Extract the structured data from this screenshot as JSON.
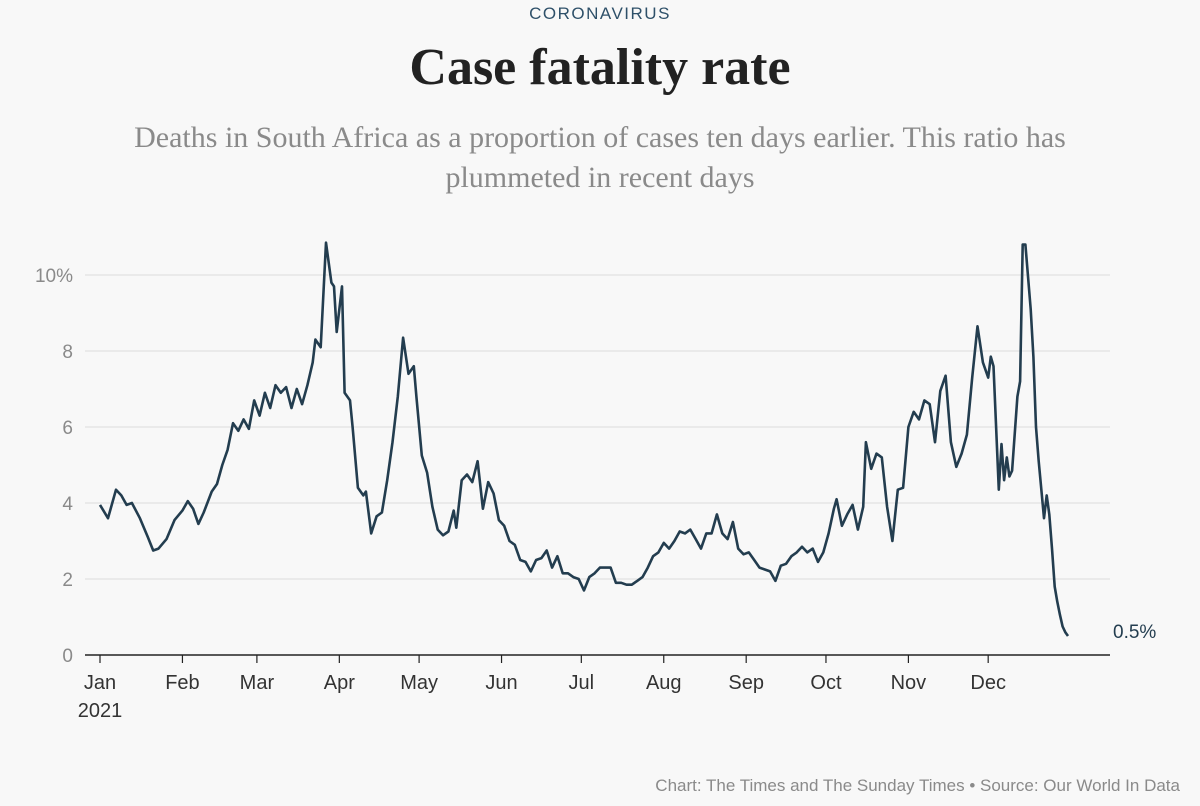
{
  "header": {
    "kicker": "CORONAVIRUS",
    "title": "Case fatality rate",
    "subtitle": "Deaths in South Africa as a proportion of cases ten days earlier. This ratio has plummeted in recent days"
  },
  "footer": {
    "credit": "Chart: The Times and The Sunday Times • Source: Our World In Data"
  },
  "colors": {
    "line": "#233d4f",
    "grid": "#dddddd",
    "axis": "#222222",
    "kicker": "#2e5069"
  },
  "chart_data": {
    "type": "line",
    "title": "Case fatality rate",
    "xlabel": "",
    "ylabel": "",
    "x_unit": "day of year 2021",
    "xlim": [
      0,
      365
    ],
    "ylim": [
      0,
      10.8
    ],
    "grid": true,
    "y_ticks": [
      {
        "value": 0,
        "label": "0"
      },
      {
        "value": 2,
        "label": "2"
      },
      {
        "value": 4,
        "label": "4"
      },
      {
        "value": 6,
        "label": "6"
      },
      {
        "value": 8,
        "label": "8"
      },
      {
        "value": 10,
        "label": "10%"
      }
    ],
    "x_ticks": [
      {
        "value": 0,
        "label": "Jan",
        "sublabel": "2021"
      },
      {
        "value": 31,
        "label": "Feb"
      },
      {
        "value": 59,
        "label": "Mar"
      },
      {
        "value": 90,
        "label": "Apr"
      },
      {
        "value": 120,
        "label": "May"
      },
      {
        "value": 151,
        "label": "Jun"
      },
      {
        "value": 181,
        "label": "Jul"
      },
      {
        "value": 212,
        "label": "Aug"
      },
      {
        "value": 243,
        "label": "Sep"
      },
      {
        "value": 273,
        "label": "Oct"
      },
      {
        "value": 304,
        "label": "Nov"
      },
      {
        "value": 334,
        "label": "Dec"
      }
    ],
    "end_label": "0.5%",
    "series": [
      {
        "name": "",
        "points": [
          [
            0,
            3.95
          ],
          [
            3,
            3.6
          ],
          [
            6,
            4.35
          ],
          [
            8,
            4.2
          ],
          [
            10,
            3.95
          ],
          [
            12,
            4.0
          ],
          [
            15,
            3.6
          ],
          [
            18,
            3.1
          ],
          [
            20,
            2.75
          ],
          [
            22,
            2.8
          ],
          [
            25,
            3.05
          ],
          [
            28,
            3.55
          ],
          [
            31,
            3.8
          ],
          [
            33,
            4.05
          ],
          [
            35,
            3.85
          ],
          [
            37,
            3.45
          ],
          [
            39,
            3.75
          ],
          [
            42,
            4.3
          ],
          [
            44,
            4.5
          ],
          [
            46,
            5.0
          ],
          [
            48,
            5.4
          ],
          [
            50,
            6.1
          ],
          [
            52,
            5.9
          ],
          [
            54,
            6.2
          ],
          [
            56,
            5.95
          ],
          [
            58,
            6.7
          ],
          [
            60,
            6.3
          ],
          [
            62,
            6.9
          ],
          [
            64,
            6.5
          ],
          [
            66,
            7.1
          ],
          [
            68,
            6.9
          ],
          [
            70,
            7.05
          ],
          [
            72,
            6.5
          ],
          [
            74,
            7.0
          ],
          [
            76,
            6.6
          ],
          [
            78,
            7.1
          ],
          [
            80,
            7.7
          ],
          [
            81,
            8.3
          ],
          [
            83,
            8.1
          ],
          [
            85,
            10.85
          ],
          [
            87,
            9.8
          ],
          [
            88,
            9.7
          ],
          [
            89,
            8.5
          ],
          [
            91,
            9.7
          ],
          [
            92,
            6.9
          ],
          [
            94,
            6.7
          ],
          [
            95,
            6.0
          ],
          [
            97,
            4.4
          ],
          [
            99,
            4.2
          ],
          [
            100,
            4.3
          ],
          [
            102,
            3.2
          ],
          [
            104,
            3.65
          ],
          [
            106,
            3.75
          ],
          [
            108,
            4.6
          ],
          [
            110,
            5.6
          ],
          [
            112,
            6.8
          ],
          [
            114,
            8.35
          ],
          [
            116,
            7.4
          ],
          [
            118,
            7.6
          ],
          [
            119,
            6.8
          ],
          [
            121,
            5.25
          ],
          [
            123,
            4.8
          ],
          [
            125,
            3.9
          ],
          [
            127,
            3.3
          ],
          [
            129,
            3.15
          ],
          [
            131,
            3.25
          ],
          [
            133,
            3.8
          ],
          [
            134,
            3.35
          ],
          [
            136,
            4.6
          ],
          [
            138,
            4.75
          ],
          [
            140,
            4.55
          ],
          [
            142,
            5.1
          ],
          [
            144,
            3.85
          ],
          [
            146,
            4.55
          ],
          [
            148,
            4.25
          ],
          [
            150,
            3.55
          ],
          [
            152,
            3.4
          ],
          [
            154,
            3.0
          ],
          [
            156,
            2.9
          ],
          [
            158,
            2.5
          ],
          [
            160,
            2.45
          ],
          [
            162,
            2.2
          ],
          [
            164,
            2.5
          ],
          [
            166,
            2.55
          ],
          [
            168,
            2.75
          ],
          [
            170,
            2.3
          ],
          [
            172,
            2.6
          ],
          [
            174,
            2.15
          ],
          [
            176,
            2.15
          ],
          [
            178,
            2.05
          ],
          [
            180,
            2.0
          ],
          [
            182,
            1.7
          ],
          [
            184,
            2.05
          ],
          [
            186,
            2.15
          ],
          [
            188,
            2.3
          ],
          [
            190,
            2.3
          ],
          [
            192,
            2.3
          ],
          [
            194,
            1.9
          ],
          [
            196,
            1.9
          ],
          [
            198,
            1.85
          ],
          [
            200,
            1.85
          ],
          [
            202,
            1.95
          ],
          [
            204,
            2.05
          ],
          [
            206,
            2.3
          ],
          [
            208,
            2.6
          ],
          [
            210,
            2.7
          ],
          [
            212,
            2.95
          ],
          [
            214,
            2.8
          ],
          [
            216,
            3.0
          ],
          [
            218,
            3.25
          ],
          [
            220,
            3.2
          ],
          [
            222,
            3.3
          ],
          [
            224,
            3.05
          ],
          [
            226,
            2.8
          ],
          [
            228,
            3.2
          ],
          [
            230,
            3.2
          ],
          [
            232,
            3.7
          ],
          [
            234,
            3.2
          ],
          [
            236,
            3.05
          ],
          [
            238,
            3.5
          ],
          [
            240,
            2.8
          ],
          [
            242,
            2.65
          ],
          [
            244,
            2.7
          ],
          [
            246,
            2.5
          ],
          [
            248,
            2.3
          ],
          [
            250,
            2.25
          ],
          [
            252,
            2.2
          ],
          [
            254,
            1.95
          ],
          [
            256,
            2.35
          ],
          [
            258,
            2.4
          ],
          [
            260,
            2.6
          ],
          [
            262,
            2.7
          ],
          [
            264,
            2.85
          ],
          [
            266,
            2.7
          ],
          [
            268,
            2.8
          ],
          [
            270,
            2.45
          ],
          [
            272,
            2.7
          ],
          [
            274,
            3.2
          ],
          [
            276,
            3.85
          ],
          [
            277,
            4.1
          ],
          [
            279,
            3.4
          ],
          [
            281,
            3.7
          ],
          [
            283,
            3.95
          ],
          [
            285,
            3.3
          ],
          [
            287,
            3.9
          ],
          [
            288,
            5.6
          ],
          [
            290,
            4.9
          ],
          [
            292,
            5.3
          ],
          [
            294,
            5.2
          ],
          [
            296,
            3.9
          ],
          [
            298,
            3.0
          ],
          [
            300,
            4.35
          ],
          [
            302,
            4.4
          ],
          [
            304,
            6.0
          ],
          [
            306,
            6.4
          ],
          [
            308,
            6.2
          ],
          [
            310,
            6.7
          ],
          [
            312,
            6.6
          ],
          [
            314,
            5.6
          ],
          [
            316,
            6.95
          ],
          [
            318,
            7.35
          ],
          [
            320,
            5.6
          ],
          [
            322,
            4.95
          ],
          [
            324,
            5.3
          ],
          [
            326,
            5.8
          ],
          [
            328,
            7.3
          ],
          [
            330,
            8.65
          ],
          [
            332,
            7.7
          ],
          [
            334,
            7.3
          ],
          [
            335,
            7.85
          ],
          [
            336,
            7.6
          ],
          [
            338,
            4.35
          ],
          [
            339,
            5.55
          ],
          [
            340,
            4.6
          ],
          [
            341,
            5.2
          ],
          [
            342,
            4.7
          ],
          [
            343,
            4.85
          ],
          [
            345,
            6.8
          ],
          [
            346,
            7.2
          ],
          [
            347,
            10.8
          ],
          [
            348,
            10.8
          ],
          [
            350,
            9.1
          ],
          [
            351,
            7.85
          ],
          [
            352,
            6.0
          ],
          [
            353,
            5.1
          ],
          [
            355,
            3.6
          ],
          [
            356,
            4.2
          ],
          [
            357,
            3.7
          ],
          [
            358,
            2.8
          ],
          [
            359,
            1.8
          ],
          [
            360,
            1.4
          ],
          [
            361,
            1.05
          ],
          [
            362,
            0.75
          ],
          [
            363,
            0.6
          ],
          [
            364,
            0.5
          ]
        ]
      }
    ]
  }
}
